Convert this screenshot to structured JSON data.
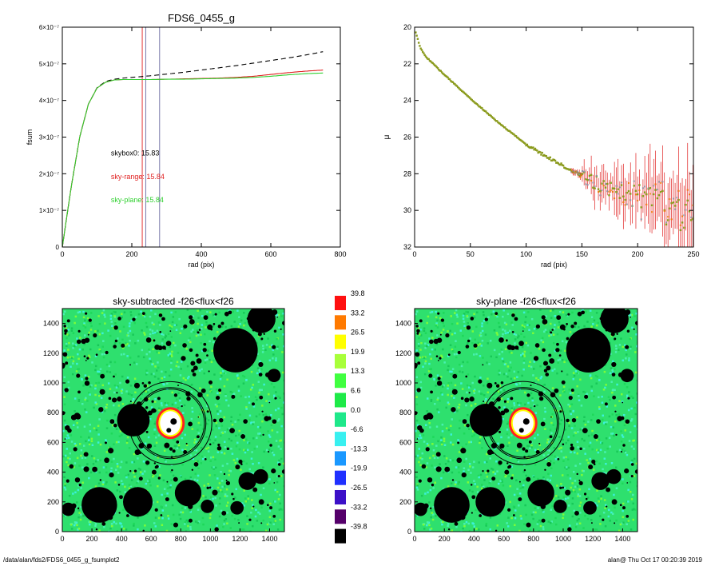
{
  "chart_data": [
    {
      "type": "line",
      "title": "FDS6_0455_g",
      "xlabel": "rad (pix)",
      "ylabel": "fsum",
      "xlim": [
        0,
        800
      ],
      "ylim": [
        0,
        6e-07
      ],
      "xticks": [
        "0",
        "200",
        "400",
        "600",
        "800"
      ],
      "yticks": [
        "0",
        "1×10⁻⁷",
        "2×10⁻⁷",
        "3×10⁻⁷",
        "4×10⁻⁷",
        "5×10⁻⁷",
        "6×10⁻⁷"
      ],
      "ytick_values": [
        0,
        1e-07,
        2e-07,
        3e-07,
        4e-07,
        5e-07,
        6e-07
      ],
      "vlines": [
        {
          "x": 230,
          "color": "#e02020"
        },
        {
          "x": 240,
          "color": "#6a6aa0"
        },
        {
          "x": 280,
          "color": "#6a6aa0"
        }
      ],
      "series": [
        {
          "style": "dashed",
          "color": "#000000",
          "x": [
            0,
            25,
            50,
            75,
            100,
            125,
            150,
            175,
            200,
            250,
            300,
            350,
            400,
            450,
            500,
            550,
            600,
            650,
            700,
            750
          ],
          "y": [
            0,
            1.6e-07,
            3e-07,
            3.9e-07,
            4.35e-07,
            4.52e-07,
            4.58e-07,
            4.61e-07,
            4.63e-07,
            4.67e-07,
            4.72e-07,
            4.77e-07,
            4.83e-07,
            4.89e-07,
            4.95e-07,
            5.02e-07,
            5.09e-07,
            5.16e-07,
            5.24e-07,
            5.33e-07
          ]
        },
        {
          "style": "solid",
          "color": "#e02020",
          "x": [
            0,
            25,
            50,
            75,
            100,
            125,
            150,
            175,
            200,
            250,
            300,
            350,
            400,
            450,
            500,
            550,
            600,
            650,
            700,
            750
          ],
          "y": [
            0,
            1.6e-07,
            3e-07,
            3.9e-07,
            4.34e-07,
            4.5e-07,
            4.56e-07,
            4.57e-07,
            4.57e-07,
            4.57e-07,
            4.58e-07,
            4.59e-07,
            4.6e-07,
            4.61e-07,
            4.63e-07,
            4.66e-07,
            4.71e-07,
            4.76e-07,
            4.8e-07,
            4.83e-07
          ]
        },
        {
          "style": "solid",
          "color": "#30d030",
          "x": [
            0,
            25,
            50,
            75,
            100,
            125,
            150,
            175,
            200,
            250,
            300,
            350,
            400,
            450,
            500,
            550,
            600,
            650,
            700,
            750
          ],
          "y": [
            0,
            1.6e-07,
            3e-07,
            3.9e-07,
            4.34e-07,
            4.5e-07,
            4.56e-07,
            4.57e-07,
            4.57e-07,
            4.57e-07,
            4.58e-07,
            4.58e-07,
            4.59e-07,
            4.6e-07,
            4.61e-07,
            4.63e-07,
            4.66e-07,
            4.7e-07,
            4.73e-07,
            4.75e-07
          ]
        }
      ],
      "annotations": [
        {
          "text": "skybox0: 15.83",
          "color": "#000000",
          "x": 140,
          "y": 2.5e-07
        },
        {
          "text": "sky-range: 15.84",
          "color": "#e02020",
          "x": 140,
          "y": 1.86e-07
        },
        {
          "text": "sky-plane: 15.84",
          "color": "#30d030",
          "x": 140,
          "y": 1.22e-07
        }
      ]
    },
    {
      "type": "scatter",
      "xlabel": "rad (pix)",
      "ylabel": "μ",
      "xlim": [
        0,
        250
      ],
      "ylim": [
        32,
        20
      ],
      "xticks": [
        "0",
        "50",
        "100",
        "150",
        "200",
        "250"
      ],
      "yticks": [
        "20",
        "22",
        "24",
        "26",
        "28",
        "30",
        "32"
      ],
      "profile": {
        "x": [
          1,
          5,
          10,
          25,
          50,
          75,
          100,
          125,
          150,
          175,
          200,
          225,
          250
        ],
        "y": [
          20.3,
          21.1,
          21.6,
          22.5,
          23.9,
          25.2,
          26.4,
          27.3,
          28.1,
          28.8,
          29.3,
          29.9,
          30.3
        ]
      },
      "colors": {
        "points": "#8a9a1c",
        "errorbars": "#e02020",
        "grey_points": "#9090a0",
        "orange_points": "#f07a10"
      }
    },
    {
      "type": "heatmap",
      "title": "sky-subtracted -f26<flux<f26",
      "xlim": [
        0,
        1500
      ],
      "ylim": [
        0,
        1500
      ],
      "xticks": [
        "0",
        "200",
        "400",
        "600",
        "800",
        "1000",
        "1200",
        "1400"
      ],
      "yticks": [
        "0",
        "200",
        "400",
        "600",
        "800",
        "1000",
        "1200",
        "1400"
      ]
    },
    {
      "type": "heatmap",
      "title": "sky-plane -f26<flux<f26",
      "xlim": [
        0,
        1500
      ],
      "ylim": [
        0,
        1500
      ],
      "xticks": [
        "0",
        "200",
        "400",
        "600",
        "800",
        "1000",
        "1200",
        "1400"
      ],
      "yticks": [
        "0",
        "200",
        "400",
        "600",
        "800",
        "1000",
        "1200",
        "1400"
      ]
    }
  ],
  "colorbar": {
    "labels": [
      "39.8",
      "33.2",
      "26.5",
      "19.9",
      "13.3",
      "6.6",
      "0.0",
      "-6.6",
      "-13.3",
      "-19.9",
      "-26.5",
      "-33.2",
      "-39.8"
    ],
    "colors": [
      "#ff1010",
      "#ff7a00",
      "#ffff00",
      "#a8ff3a",
      "#40ff40",
      "#1eea48",
      "#1ee88a",
      "#38f0f0",
      "#1a98ff",
      "#2030ff",
      "#3c10c8",
      "#55006a",
      "#000000"
    ]
  },
  "footer": {
    "left": "/data/alan/fds2/FDS6_0455_g_fsumplot2",
    "right": "alan@  Thu Oct 17 00:20:39 2019"
  }
}
